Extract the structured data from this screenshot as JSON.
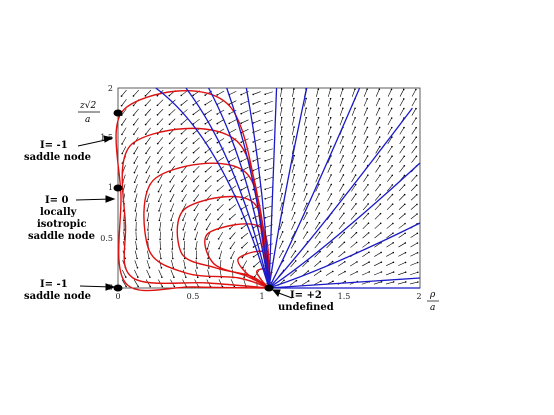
{
  "axes": {
    "x_ticks": [
      "0",
      "0.5",
      "1",
      "1.5",
      "2"
    ],
    "x_tick_values": [
      0,
      0.5,
      1,
      1.5,
      2
    ],
    "y_ticks": [
      "0",
      "0.5",
      "1",
      "1.5",
      "2"
    ],
    "y_tick_values": [
      0,
      0.5,
      1,
      1.5,
      2
    ],
    "x_range": [
      0,
      2
    ],
    "y_range": [
      0,
      2
    ],
    "x_label_num": "ρ",
    "x_label_den": "a",
    "y_label_num": "z√2",
    "y_label_den": "a"
  },
  "critical_points": [
    {
      "x": 0,
      "y": 1.75,
      "lines": [
        "I= -1",
        "saddle node"
      ]
    },
    {
      "x": 0,
      "y": 1.0,
      "lines": [
        "I= 0",
        "locally",
        "isotropic",
        "saddle node"
      ]
    },
    {
      "x": 0,
      "y": 0,
      "lines": [
        "I= -1",
        "saddle node"
      ]
    },
    {
      "x": 1,
      "y": 0,
      "lines": [
        "I= +2",
        "undefined"
      ]
    }
  ],
  "colors": {
    "red_curves": "#dd1111",
    "blue_curves": "#1a1ac8",
    "arrows": "#000000"
  }
}
